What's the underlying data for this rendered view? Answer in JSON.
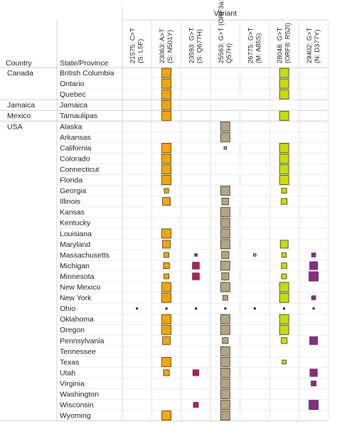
{
  "chart_data": {
    "type": "heatmap",
    "title": "",
    "column_group_label": "Variant",
    "row_header_labels": [
      "Country",
      "State/Province"
    ],
    "variants": [
      {
        "line1": "21575: C>T",
        "line2": "(S: L5F)",
        "color": "#f7a600"
      },
      {
        "line1": "23063: A>T",
        "line2": "(S: N501Y)",
        "color": "#f7a600"
      },
      {
        "line1": "23593: G>T",
        "line2": "(S: Q677H)",
        "color": "#c2185b"
      },
      {
        "line1": "25563: G>T (ORF3a:",
        "line2": "Q57H)",
        "color": "#b5a57e"
      },
      {
        "line1": "26775: G>T",
        "line2": "(M: A85S)",
        "color": "#9e9e9e"
      },
      {
        "line1": "28048: G>T",
        "line2": "(ORF8: R52I)",
        "color": "#c9dd00"
      },
      {
        "line1": "29402: G>T",
        "line2": "(N: D377Y)",
        "color": "#8e2a88"
      }
    ],
    "groups": [
      {
        "country": "Canada",
        "states": [
          "British Columbia",
          "Ontario",
          "Quebec"
        ]
      },
      {
        "country": "Jamaica",
        "states": [
          "Jamaica"
        ]
      },
      {
        "country": "Mexico",
        "states": [
          "Tamaulipas"
        ]
      },
      {
        "country": "USA",
        "states": [
          "Alaska",
          "Arkansas",
          "California",
          "Colorado",
          "Connecticut",
          "Florida",
          "Georgia",
          "Illinois",
          "Kansas",
          "Kentucky",
          "Louisiana",
          "Maryland",
          "Massachusetts",
          "Michigan",
          "Minnesota",
          "New Mexico",
          "New York",
          "Ohio",
          "Oklahoma",
          "Oregon",
          "Pennsylvania",
          "Tennessee",
          "Texas",
          "Utah",
          "Virginia",
          "Washington",
          "Wisconsin",
          "Wyoming"
        ]
      }
    ],
    "values": [
      [
        0,
        1.0,
        0,
        0,
        0,
        1.0,
        0
      ],
      [
        0,
        1.0,
        0,
        0,
        0,
        1.0,
        0
      ],
      [
        0,
        1.0,
        0,
        0,
        0,
        1.0,
        0
      ],
      [
        0,
        1.0,
        0,
        0,
        0,
        0,
        0
      ],
      [
        0,
        1.0,
        0,
        0,
        0,
        1.0,
        0
      ],
      [
        0,
        0,
        0,
        1.0,
        0,
        0,
        0
      ],
      [
        0,
        0,
        0,
        1.0,
        0,
        0,
        0
      ],
      [
        0,
        1.0,
        0,
        0.3,
        0,
        1.0,
        0
      ],
      [
        0,
        1.0,
        0,
        0,
        0,
        1.0,
        0
      ],
      [
        0,
        1.0,
        0,
        0,
        0,
        1.0,
        0
      ],
      [
        0,
        1.0,
        0,
        0,
        0,
        1.0,
        0
      ],
      [
        0,
        0.5,
        0,
        1.0,
        0,
        0.55,
        0
      ],
      [
        0,
        0.85,
        0,
        0.75,
        0,
        0.65,
        0
      ],
      [
        0,
        0,
        0,
        1.0,
        0,
        0,
        0
      ],
      [
        0,
        0,
        0,
        1.0,
        0,
        0,
        0
      ],
      [
        0,
        1.0,
        0,
        1.0,
        0,
        0,
        0
      ],
      [
        0,
        0.85,
        0,
        1.0,
        0,
        0.85,
        0
      ],
      [
        0,
        0.55,
        0.3,
        0.8,
        0.3,
        0.5,
        0.45
      ],
      [
        0,
        0.65,
        0.75,
        1.0,
        0,
        0.6,
        0.85
      ],
      [
        0,
        0.55,
        0.75,
        0.8,
        0,
        0.55,
        1.0
      ],
      [
        0,
        1.0,
        0,
        1.0,
        0,
        1.0,
        0
      ],
      [
        0,
        1.0,
        0,
        0.55,
        0,
        1.0,
        0.45
      ],
      [
        0.25,
        0.25,
        0.25,
        0.25,
        0.25,
        0.25,
        0.25
      ],
      [
        0,
        1.0,
        0,
        1.0,
        0,
        1.0,
        0
      ],
      [
        0,
        1.0,
        0,
        1.0,
        0,
        1.0,
        0
      ],
      [
        0,
        0.85,
        0,
        0.65,
        0,
        0.65,
        0.85
      ],
      [
        0,
        0,
        0,
        1.0,
        0,
        0,
        0
      ],
      [
        0,
        1.0,
        0,
        1.0,
        0,
        0.45,
        0
      ],
      [
        0,
        0.65,
        0.65,
        1.0,
        0,
        0,
        0.8
      ],
      [
        0,
        0,
        0,
        1.0,
        0,
        0,
        0.55
      ],
      [
        0,
        0,
        0,
        1.0,
        0,
        0,
        0
      ],
      [
        0,
        0,
        0.55,
        1.0,
        0,
        0,
        1.0
      ],
      [
        0,
        1.0,
        0,
        1.0,
        0,
        0,
        0
      ]
    ]
  }
}
